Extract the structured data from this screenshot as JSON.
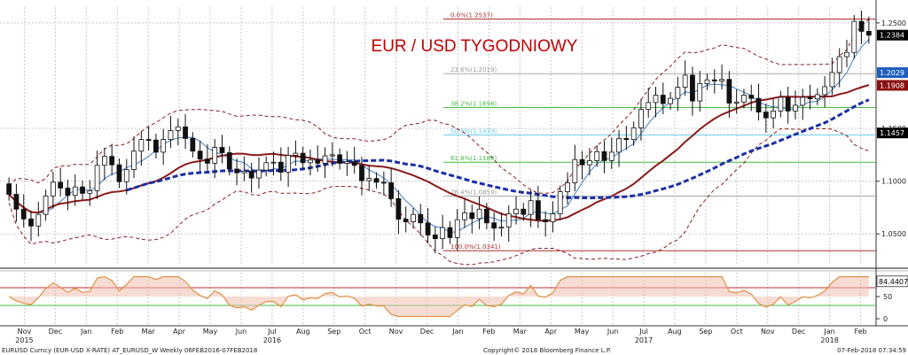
{
  "chart_data": {
    "type": "candlestick",
    "title": "EUR / USD TYGODNIOWY",
    "price_axis": {
      "ylim": [
        1.02,
        1.265
      ],
      "ticks": [
        {
          "v": 1.25,
          "label": "1.2500"
        },
        {
          "v": 1.15,
          "label": "1.1500"
        },
        {
          "v": 1.1,
          "label": "1.1000"
        },
        {
          "v": 1.05,
          "label": "1.0500"
        }
      ]
    },
    "price_tags": [
      {
        "v": 1.2384,
        "label": "1.2384",
        "bg": "#000000",
        "fg": "#ffffff"
      },
      {
        "v": 1.2029,
        "label": "1.2029",
        "bg": "#1f5fbf",
        "fg": "#ffffff"
      },
      {
        "v": 1.1908,
        "label": "1.1908",
        "bg": "#8b1010",
        "fg": "#ffffff"
      },
      {
        "v": 1.1457,
        "label": "1.1457",
        "bg": "#000000",
        "fg": "#ffffff"
      }
    ],
    "fib_levels": [
      {
        "label": "0.0%(1.2537)",
        "v": 1.2537,
        "color": "#b03030"
      },
      {
        "label": "23.6%(1.2019)",
        "v": 1.2019,
        "color": "#aaaaaa"
      },
      {
        "label": "38.2%(1.1698)",
        "v": 1.1698,
        "color": "#44bb44"
      },
      {
        "label": "50.0%(1.1439)",
        "v": 1.1439,
        "color": "#66ccee"
      },
      {
        "label": "61.8%(1.1180)",
        "v": 1.118,
        "color": "#44bb44"
      },
      {
        "label": "76.4%(1.0859)",
        "v": 1.0859,
        "color": "#aaaaaa"
      },
      {
        "label": "100.0%(1.0341)",
        "v": 1.0341,
        "color": "#b03030"
      }
    ],
    "months": [
      "Nov",
      "Dec",
      "Jan",
      "Feb",
      "Mar",
      "Apr",
      "May",
      "Jun",
      "Jul",
      "Aug",
      "Sep",
      "Oct",
      "Nov",
      "Dec",
      "Jan",
      "Feb",
      "Mar",
      "Apr",
      "May",
      "Jun",
      "Jul",
      "Aug",
      "Sep",
      "Oct",
      "Nov",
      "Dec",
      "Jan",
      "Feb"
    ],
    "years": [
      {
        "label": "2015",
        "month_index": 0
      },
      {
        "label": "2016",
        "month_index": 8
      },
      {
        "label": "2017",
        "month_index": 20
      },
      {
        "label": "2018",
        "month_index": 26
      }
    ],
    "weekly_closes": [
      1.0875,
      1.0735,
      1.0642,
      1.0575,
      1.0685,
      1.086,
      1.099,
      1.0935,
      1.0865,
      1.0945,
      1.0885,
      1.091,
      1.115,
      1.1235,
      1.1155,
      1.0995,
      1.111,
      1.1285,
      1.1395,
      1.139,
      1.1275,
      1.1395,
      1.148,
      1.1515,
      1.1405,
      1.1285,
      1.121,
      1.117,
      1.132,
      1.127,
      1.1115,
      1.108,
      1.1095,
      1.103,
      1.1105,
      1.1175,
      1.118,
      1.1085,
      1.1245,
      1.1265,
      1.1175,
      1.12,
      1.117,
      1.124,
      1.125,
      1.117,
      1.1185,
      1.115,
      1.1005,
      1.1025,
      1.099,
      1.0985,
      1.0835,
      1.064,
      1.0615,
      1.0685,
      1.0605,
      1.049,
      1.0455,
      1.056,
      1.0465,
      1.0635,
      1.07,
      1.0645,
      1.0735,
      1.0605,
      1.0555,
      1.0565,
      1.069,
      1.0735,
      1.0685,
      1.0815,
      1.0635,
      1.0615,
      1.069,
      1.09,
      1.0985,
      1.1205,
      1.1155,
      1.1195,
      1.128,
      1.1195,
      1.1275,
      1.1405,
      1.1395,
      1.1505,
      1.168,
      1.1745,
      1.1815,
      1.1735,
      1.1785,
      1.189,
      1.2005,
      1.176,
      1.1925,
      1.196,
      1.195,
      1.1965,
      1.174,
      1.175,
      1.1815,
      1.1785,
      1.1655,
      1.16,
      1.1665,
      1.1795,
      1.1665,
      1.172,
      1.1795,
      1.178,
      1.182,
      1.1895,
      1.203,
      1.218,
      1.222,
      1.2515,
      1.242,
      1.2384
    ],
    "indicator": {
      "ylim": [
        0,
        100
      ],
      "ticks": [
        {
          "v": 50,
          "label": "50"
        },
        {
          "v": 0,
          "label": "0"
        }
      ],
      "last": {
        "v": 84.4407,
        "label": "84.4407"
      },
      "bands": [
        70,
        30
      ]
    },
    "series": [
      {
        "name": "",
        "kind": "sma_fast",
        "color": "#2f6fb0"
      },
      {
        "name": "",
        "kind": "sma_slow",
        "color": "#8b1a1a"
      },
      {
        "name": "",
        "kind": "sma_long",
        "color": "#1a2fa8"
      },
      {
        "name": "",
        "kind": "bollinger",
        "color": "#8b1a1a"
      }
    ]
  },
  "footer": {
    "left": "EURUSD Curncy (EUR-USD X-RATE) AT_EURUSD_W  Weekly 06FEB2016-07FEB2018",
    "center": "Copyright© 2018 Bloomberg Finance L.P.",
    "right": "07-Feb-2018 07:34:59"
  }
}
